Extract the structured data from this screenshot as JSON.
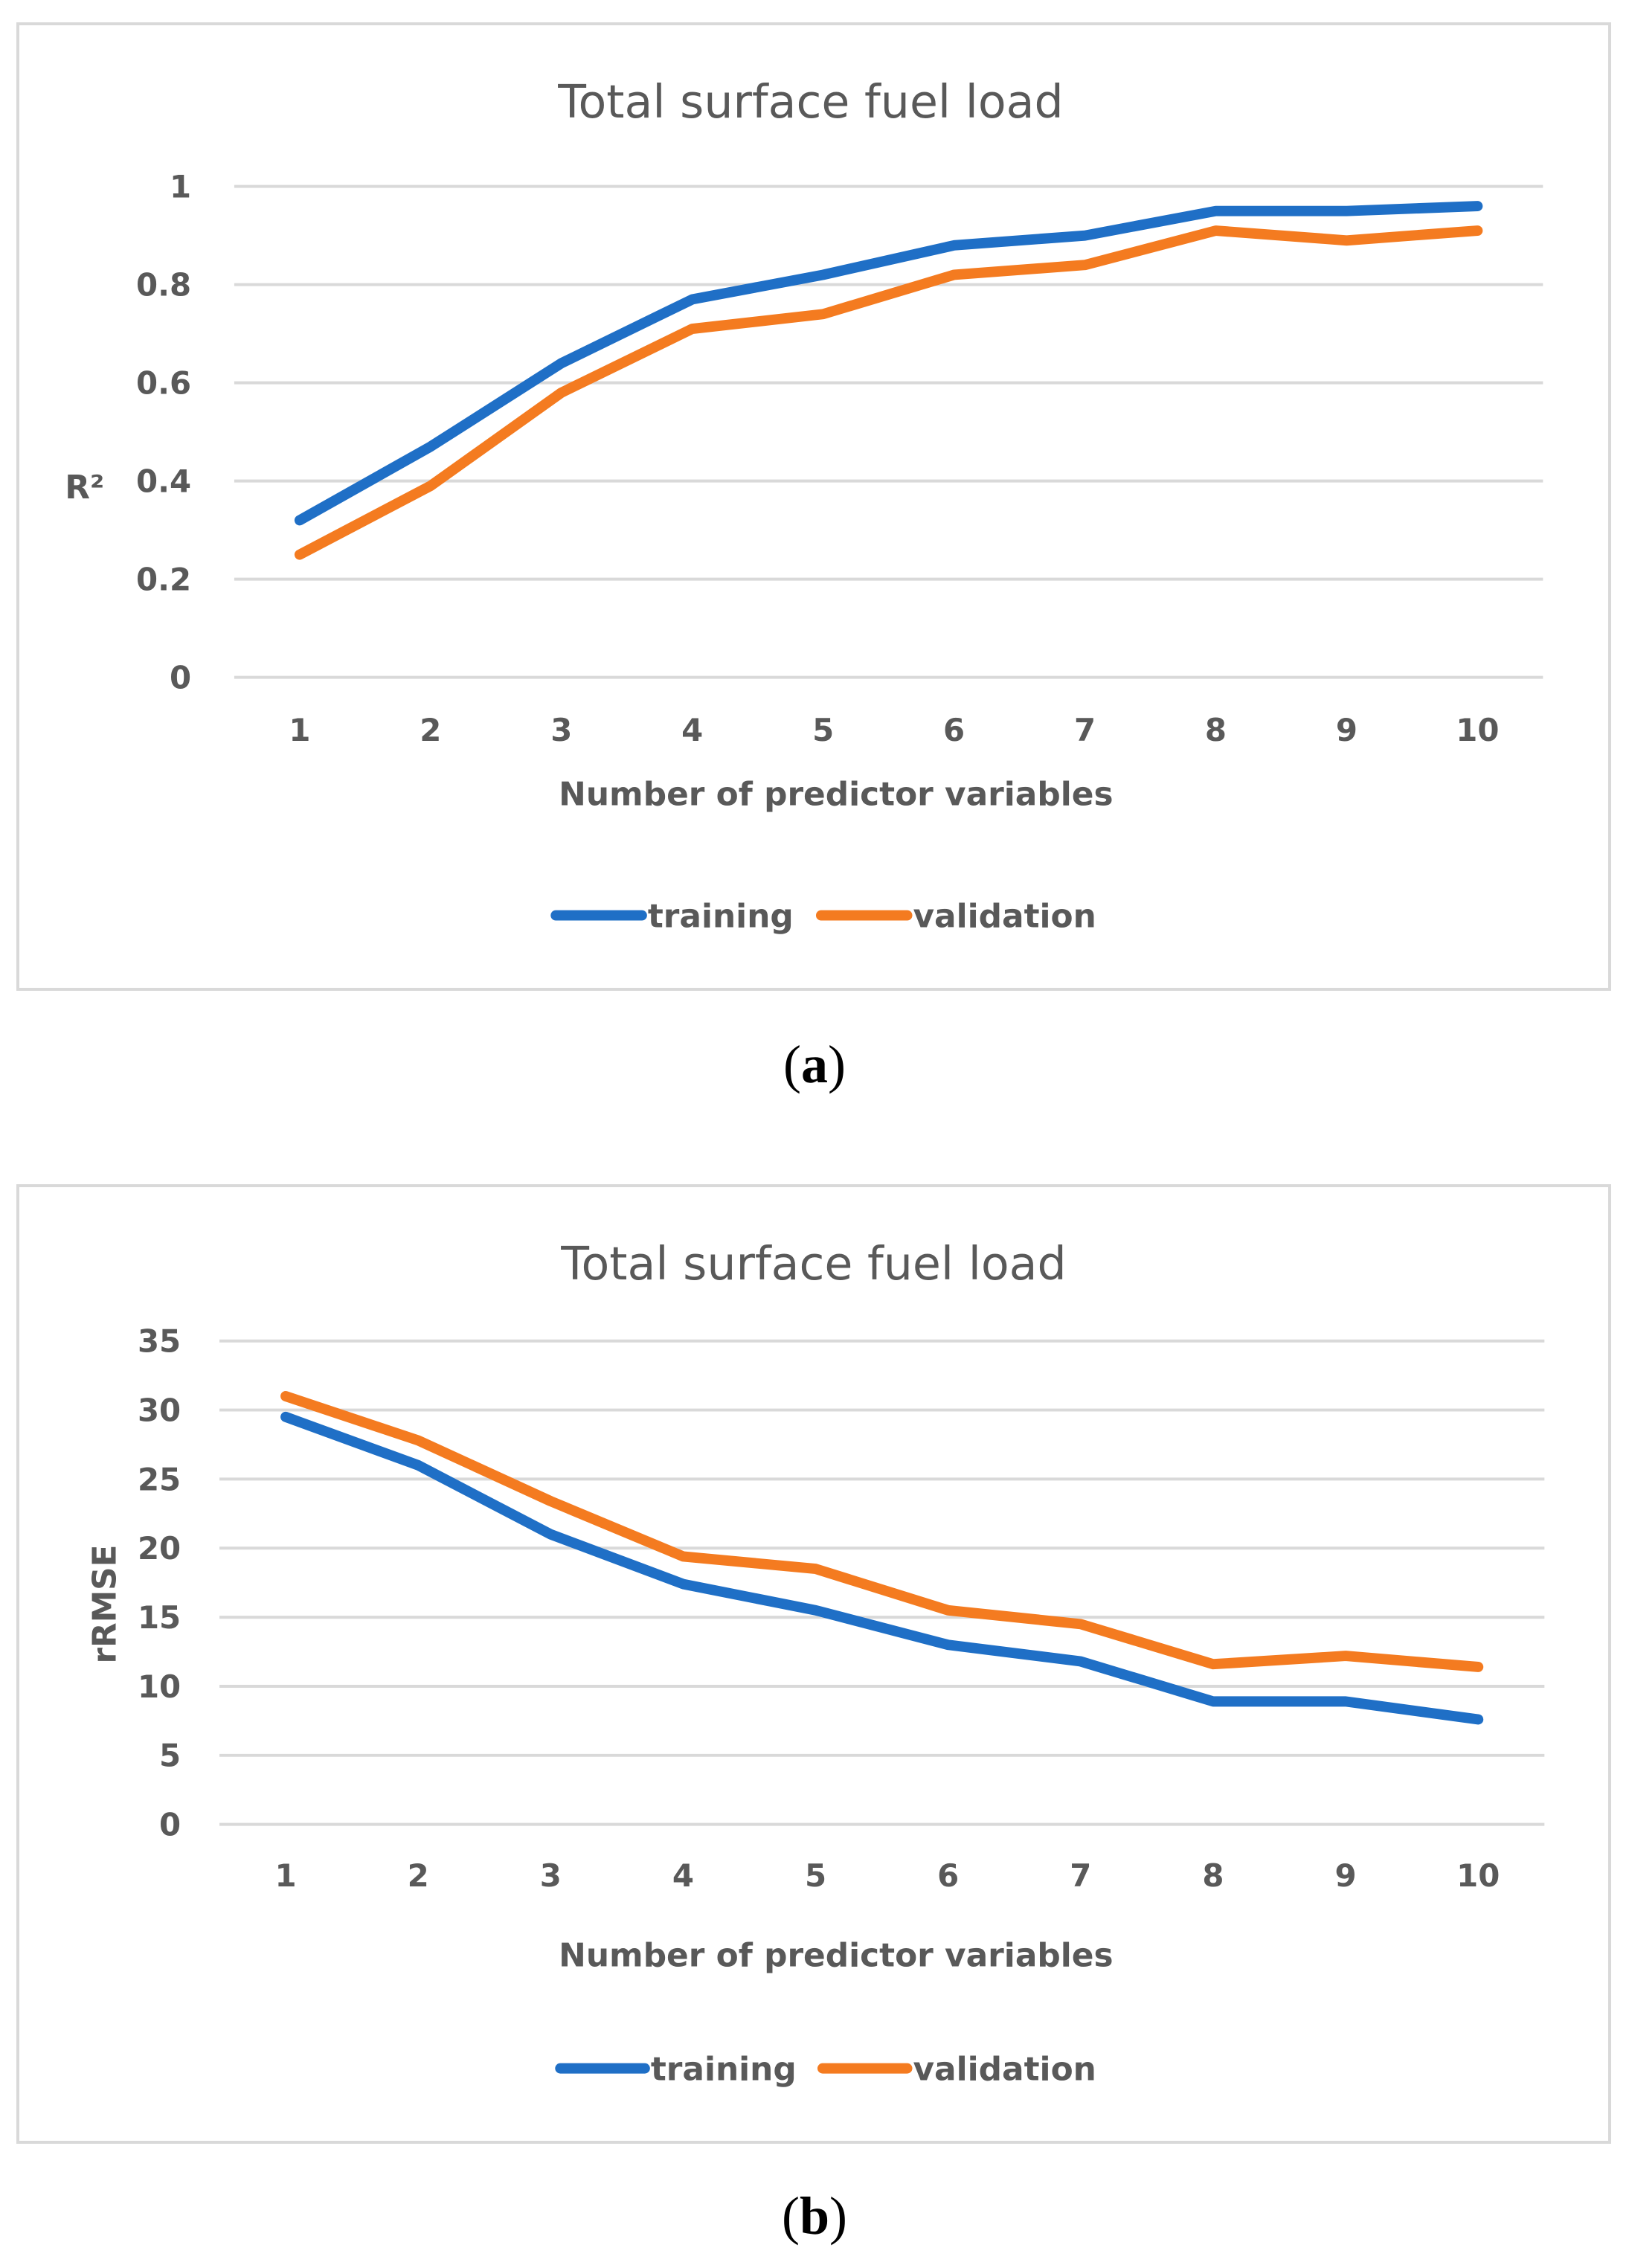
{
  "colors": {
    "training": "#1f6fc6",
    "validation": "#f47b20",
    "grid": "#d9d9d9",
    "text": "#595959"
  },
  "chart_data": [
    {
      "type": "line",
      "title": "Total surface fuel load",
      "xlabel": "Number of predictor variables",
      "ylabel": "R²",
      "categories": [
        "1",
        "2",
        "3",
        "4",
        "5",
        "6",
        "7",
        "8",
        "9",
        "10"
      ],
      "yticks": [
        "0",
        "0.2",
        "0.4",
        "0.6",
        "0.8",
        "1"
      ],
      "ylim": [
        0,
        1
      ],
      "legend_position": "bottom",
      "series": [
        {
          "name": "training",
          "color": "#1f6fc6",
          "values": [
            0.32,
            0.47,
            0.64,
            0.77,
            0.82,
            0.88,
            0.9,
            0.95,
            0.95,
            0.96
          ]
        },
        {
          "name": "validation",
          "color": "#f47b20",
          "values": [
            0.25,
            0.39,
            0.58,
            0.71,
            0.74,
            0.82,
            0.84,
            0.91,
            0.89,
            0.91
          ]
        }
      ],
      "caption": "a"
    },
    {
      "type": "line",
      "title": "Total surface fuel load",
      "xlabel": "Number of predictor variables",
      "ylabel": "rRMSE",
      "categories": [
        "1",
        "2",
        "3",
        "4",
        "5",
        "6",
        "7",
        "8",
        "9",
        "10"
      ],
      "yticks": [
        "0",
        "5",
        "10",
        "15",
        "20",
        "25",
        "30",
        "35"
      ],
      "ylim": [
        0,
        35
      ],
      "legend_position": "bottom",
      "series": [
        {
          "name": "training",
          "color": "#1f6fc6",
          "values": [
            29.5,
            26.0,
            21.0,
            17.4,
            15.5,
            13.0,
            11.8,
            8.9,
            8.9,
            7.6
          ]
        },
        {
          "name": "validation",
          "color": "#f47b20",
          "values": [
            31.0,
            27.8,
            23.4,
            19.4,
            18.5,
            15.5,
            14.5,
            11.6,
            12.2,
            11.4
          ]
        }
      ],
      "caption": "b"
    }
  ]
}
